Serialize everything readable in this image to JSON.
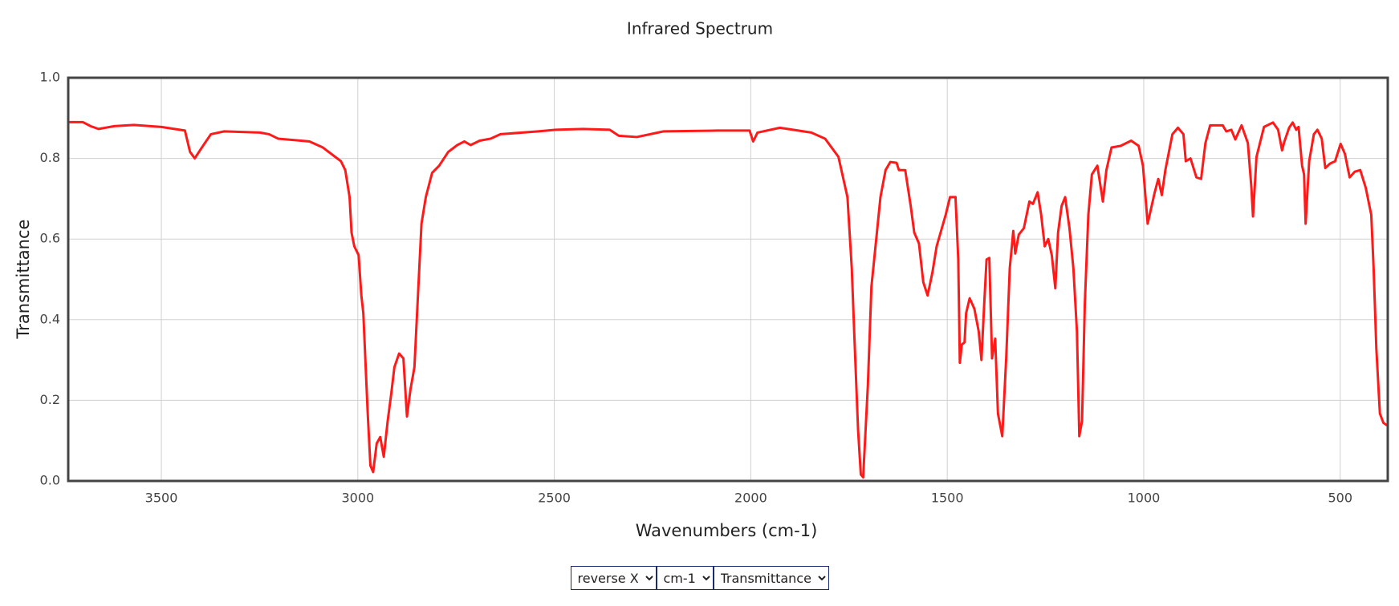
{
  "chart_data": {
    "type": "line",
    "title": "Infrared Spectrum",
    "x_label": "Wavenumbers (cm-1)",
    "y_label": "Transmittance",
    "xlim": [
      3737,
      379
    ],
    "reverse_x": true,
    "xticks": [
      3500,
      3000,
      2500,
      2000,
      1500,
      1000,
      500
    ],
    "ylim": [
      0,
      1
    ],
    "yticks": [
      {
        "value": 0,
        "label": "0.0"
      },
      0.2,
      0.4,
      0.6,
      0.8,
      {
        "value": 1,
        "label": "1.0"
      }
    ],
    "grid": true,
    "x": [
      3737,
      3700,
      3680,
      3660,
      3620,
      3570,
      3500,
      3440,
      3427,
      3415,
      3397,
      3374,
      3340,
      3249,
      3226,
      3203,
      3123,
      3089,
      3043,
      3032,
      3021,
      3016,
      3009,
      2998,
      2991,
      2986,
      2975,
      2968,
      2961,
      2952,
      2943,
      2934,
      2924,
      2915,
      2907,
      2895,
      2884,
      2875,
      2866,
      2856,
      2847,
      2838,
      2827,
      2811,
      2793,
      2770,
      2747,
      2729,
      2713,
      2690,
      2662,
      2637,
      2541,
      2496,
      2427,
      2359,
      2336,
      2290,
      2222,
      2085,
      2003,
      1994,
      1983,
      1926,
      1846,
      1811,
      1777,
      1754,
      1743,
      1736,
      1727,
      1720,
      1714,
      1702,
      1693,
      1686,
      1670,
      1657,
      1645,
      1629,
      1623,
      1607,
      1593,
      1584,
      1572,
      1561,
      1550,
      1538,
      1527,
      1504,
      1493,
      1479,
      1472,
      1468,
      1463,
      1456,
      1452,
      1443,
      1431,
      1420,
      1413,
      1406,
      1400,
      1393,
      1386,
      1378,
      1371,
      1360,
      1350,
      1341,
      1332,
      1327,
      1318,
      1305,
      1291,
      1282,
      1270,
      1261,
      1252,
      1243,
      1234,
      1225,
      1218,
      1209,
      1200,
      1189,
      1179,
      1170,
      1164,
      1157,
      1150,
      1141,
      1132,
      1118,
      1104,
      1095,
      1082,
      1059,
      1032,
      1013,
      1002,
      990,
      972,
      963,
      954,
      945,
      927,
      913,
      899,
      893,
      881,
      866,
      854,
      843,
      831,
      813,
      799,
      790,
      777,
      767,
      751,
      735,
      726,
      722,
      713,
      694,
      671,
      658,
      648,
      642,
      630,
      621,
      612,
      606,
      597,
      592,
      588,
      579,
      567,
      558,
      547,
      538,
      526,
      513,
      499,
      488,
      476,
      463,
      449,
      435,
      421,
      415,
      408,
      399,
      390,
      381
    ],
    "series": [
      {
        "name": "Transmittance",
        "color": "#ff1a1a",
        "values": [
          0.89,
          0.89,
          0.88,
          0.873,
          0.88,
          0.883,
          0.878,
          0.869,
          0.816,
          0.8,
          0.827,
          0.86,
          0.867,
          0.864,
          0.86,
          0.849,
          0.842,
          0.827,
          0.793,
          0.771,
          0.704,
          0.616,
          0.582,
          0.56,
          0.46,
          0.416,
          0.171,
          0.038,
          0.022,
          0.093,
          0.109,
          0.06,
          0.149,
          0.216,
          0.282,
          0.316,
          0.304,
          0.16,
          0.227,
          0.282,
          0.46,
          0.638,
          0.704,
          0.764,
          0.782,
          0.816,
          0.833,
          0.842,
          0.833,
          0.844,
          0.849,
          0.86,
          0.867,
          0.871,
          0.873,
          0.871,
          0.856,
          0.853,
          0.867,
          0.869,
          0.869,
          0.842,
          0.864,
          0.876,
          0.864,
          0.849,
          0.804,
          0.704,
          0.527,
          0.349,
          0.127,
          0.016,
          0.009,
          0.238,
          0.482,
          0.549,
          0.704,
          0.771,
          0.791,
          0.789,
          0.771,
          0.771,
          0.682,
          0.616,
          0.589,
          0.493,
          0.46,
          0.516,
          0.582,
          0.66,
          0.704,
          0.704,
          0.549,
          0.293,
          0.338,
          0.344,
          0.416,
          0.453,
          0.427,
          0.371,
          0.3,
          0.438,
          0.549,
          0.553,
          0.304,
          0.353,
          0.167,
          0.111,
          0.304,
          0.527,
          0.62,
          0.564,
          0.611,
          0.627,
          0.693,
          0.687,
          0.716,
          0.66,
          0.582,
          0.6,
          0.56,
          0.478,
          0.616,
          0.682,
          0.704,
          0.627,
          0.527,
          0.371,
          0.111,
          0.149,
          0.438,
          0.66,
          0.76,
          0.782,
          0.693,
          0.771,
          0.827,
          0.831,
          0.844,
          0.831,
          0.782,
          0.638,
          0.716,
          0.749,
          0.709,
          0.771,
          0.86,
          0.876,
          0.86,
          0.793,
          0.8,
          0.753,
          0.749,
          0.838,
          0.882,
          0.882,
          0.882,
          0.867,
          0.871,
          0.847,
          0.882,
          0.838,
          0.727,
          0.656,
          0.804,
          0.878,
          0.889,
          0.871,
          0.82,
          0.842,
          0.876,
          0.889,
          0.871,
          0.878,
          0.782,
          0.76,
          0.638,
          0.793,
          0.86,
          0.871,
          0.849,
          0.776,
          0.787,
          0.793,
          0.836,
          0.811,
          0.753,
          0.767,
          0.771,
          0.727,
          0.66,
          0.527,
          0.327,
          0.167,
          0.144,
          0.138
        ]
      }
    ],
    "controls": [
      "reverse X",
      "cm-1",
      "Transmittance"
    ]
  }
}
